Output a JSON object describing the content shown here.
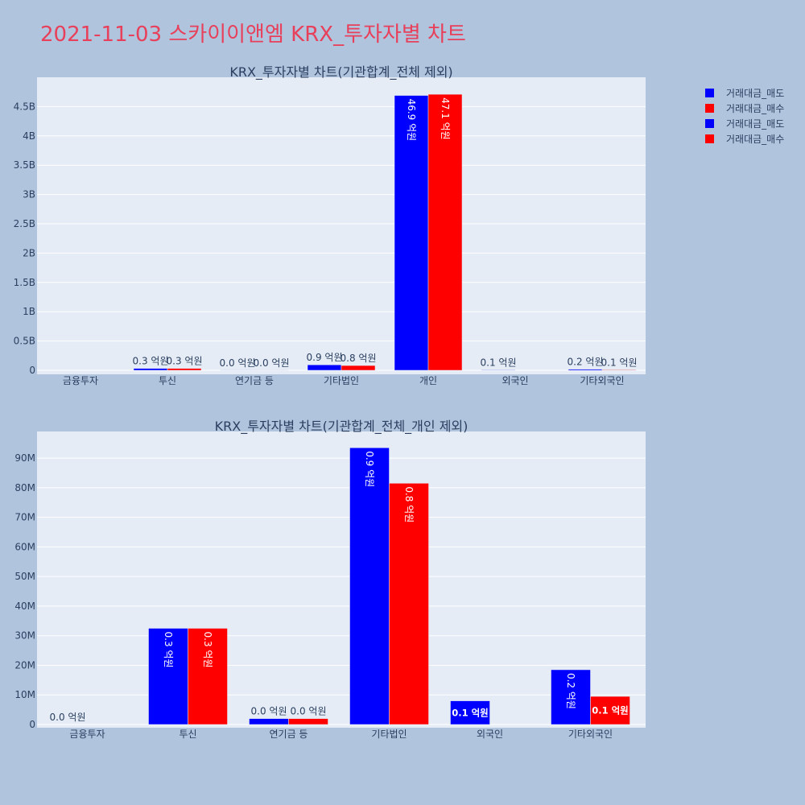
{
  "main_title": "2021-11-03 스카이이앤엠 KRX_투자자별 차트",
  "legend": [
    {
      "label": "거래대금_매도",
      "color": "#0000ff"
    },
    {
      "label": "거래대금_매수",
      "color": "#ff0000"
    },
    {
      "label": "거래대금_매도",
      "color": "#0000ff"
    },
    {
      "label": "거래대금_매수",
      "color": "#ff0000"
    }
  ],
  "chart_data": [
    {
      "type": "bar",
      "title": "KRX_투자자별 차트(기관합계_전체 제외)",
      "categories": [
        "금융투자",
        "투신",
        "연기금 등",
        "기타법인",
        "개인",
        "외국인",
        "기타외국인"
      ],
      "ylim": [
        0,
        5000000000
      ],
      "ytick_values": [
        0,
        500000000,
        1000000000,
        1500000000,
        2000000000,
        2500000000,
        3000000000,
        3500000000,
        4000000000,
        4500000000
      ],
      "ytick_labels": [
        "0",
        "0.5B",
        "1B",
        "1.5B",
        "2B",
        "2.5B",
        "3B",
        "3.5B",
        "4B",
        "4.5B"
      ],
      "grid": true,
      "series": [
        {
          "name": "거래대금_매도",
          "color": "#0000ff",
          "values": [
            0,
            32500000,
            2000000,
            93500000,
            4690000000,
            8000000,
            18500000
          ],
          "labels": [
            "",
            "0.3 억원",
            "0.0 억원",
            "0.9 억원",
            "46.9 억원",
            "0.1 억원",
            "0.2 억원"
          ]
        },
        {
          "name": "거래대금_매수",
          "color": "#ff0000",
          "values": [
            0,
            32500000,
            2000000,
            81500000,
            4710000000,
            0,
            9500000
          ],
          "labels": [
            "",
            "0.3 억원",
            "0.0 억원",
            "0.8 억원",
            "47.1 억원",
            "",
            "0.1 억원"
          ]
        }
      ]
    },
    {
      "type": "bar",
      "title": "KRX_투자자별 차트(기관합계_전체_개인 제외)",
      "categories": [
        "금융투자",
        "투신",
        "연기금 등",
        "기타법인",
        "외국인",
        "기타외국인"
      ],
      "ylim": [
        0,
        99000000
      ],
      "ytick_values": [
        0,
        10000000,
        20000000,
        30000000,
        40000000,
        50000000,
        60000000,
        70000000,
        80000000,
        90000000
      ],
      "ytick_labels": [
        "0",
        "10M",
        "20M",
        "30M",
        "40M",
        "50M",
        "60M",
        "70M",
        "80M",
        "90M"
      ],
      "grid": true,
      "series": [
        {
          "name": "거래대금_매도",
          "color": "#0000ff",
          "values": [
            0,
            32500000,
            2000000,
            93500000,
            8000000,
            18500000
          ],
          "labels": [
            "0.0 억원",
            "0.3 억원",
            "0.0 억원",
            "0.9 억원",
            "0.1 억원",
            "0.2 억원"
          ]
        },
        {
          "name": "거래대금_매수",
          "color": "#ff0000",
          "values": [
            0,
            32500000,
            2000000,
            81500000,
            0,
            9500000
          ],
          "labels": [
            "",
            "0.3 억원",
            "0.0 억원",
            "0.8 억원",
            "",
            "0.1 억원"
          ]
        }
      ]
    }
  ]
}
